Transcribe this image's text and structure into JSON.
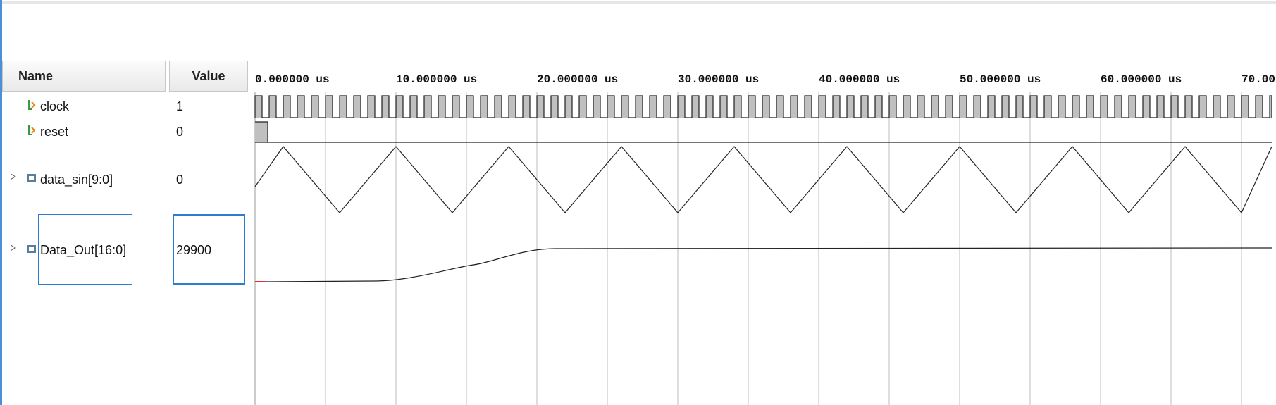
{
  "columns": {
    "name": "Name",
    "value": "Value"
  },
  "signals": [
    {
      "name": "clock",
      "value": "1",
      "type": "bit"
    },
    {
      "name": "reset",
      "value": "0",
      "type": "bit"
    },
    {
      "name": "data_sin[9:0]",
      "value": "0",
      "type": "bus",
      "expandable": true
    },
    {
      "name": "Data_Out[16:0]",
      "value": "29900",
      "type": "bus",
      "expandable": true,
      "selected": true
    }
  ],
  "timeline": {
    "ticks": [
      "0.000000 us",
      "10.000000 us",
      "20.000000 us",
      "30.000000 us",
      "40.000000 us",
      "50.000000 us",
      "60.000000 us",
      "70.00"
    ],
    "tick_values_us": [
      0,
      10,
      20,
      30,
      40,
      50,
      60,
      70
    ]
  },
  "waveforms": {
    "clock_period_us": 1.0,
    "reset_high_until_us": 0.9,
    "data_sin_period_us": 8.0,
    "data_out_rise_start_us": 11,
    "data_out_settle_us": 20,
    "data_out_low_level_fraction": 0.0,
    "data_out_high_level_fraction": 1.0
  },
  "colors": {
    "selection": "#2a7dd1",
    "wave": "#222222",
    "clock_fill": "#c0c0c0",
    "grid": "#bdbdbd",
    "bit_icon_green": "#3a9a3a",
    "bit_icon_orange": "#e08a1e",
    "bus_icon": "#5a7f9c",
    "start_marker": "#e03030"
  },
  "icons": {
    "bit": "bit-signal-icon",
    "bus": "bus-signal-icon",
    "expand": "chevron-right-icon"
  }
}
